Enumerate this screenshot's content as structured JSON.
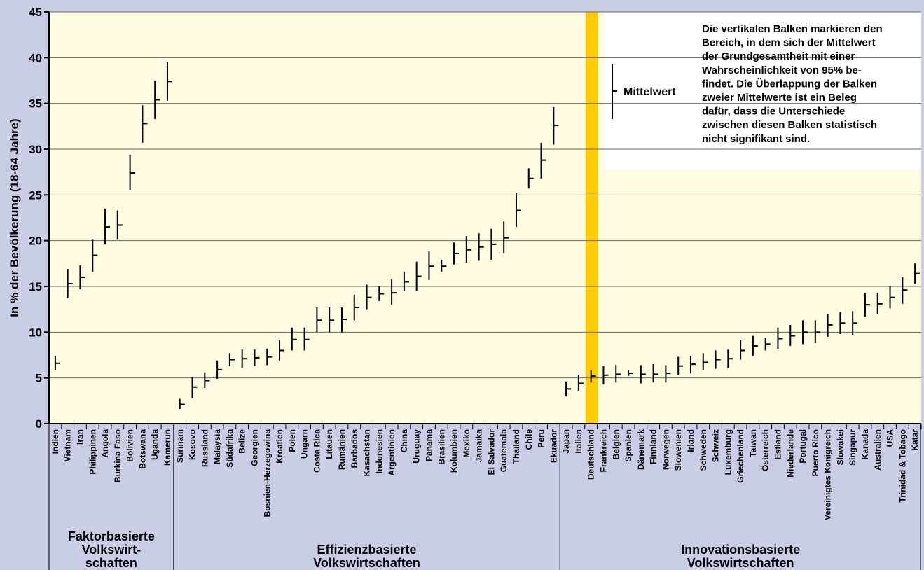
{
  "chart_data": {
    "type": "errorbar",
    "y_label": "In % der Bevölkerung (18-64 Jahre)",
    "ylim": [
      0,
      45
    ],
    "yticks": [
      0,
      5,
      10,
      15,
      20,
      25,
      30,
      35,
      40,
      45
    ],
    "grid": true,
    "color": "#000000",
    "highlight_category": "Deutschland",
    "highlight_color": "#ffcc00",
    "highlight_label_color": "#e0201b",
    "legend_label": "Mittelwert",
    "annotation": [
      "Die vertikalen Balken markieren den",
      "Bereich, in dem sich der Mittelwert",
      "der Grundgesamtheit mit einer",
      "Wahrscheinlichkeit von 95% be-",
      "findet. Die Überlappung der Balken",
      "zweier Mittelwerte ist ein Beleg",
      "dafür, dass die Unterschiede",
      "zwischen diesen Balken statistisch",
      "nicht signifikant sind."
    ],
    "groups": [
      {
        "label": [
          "Faktorbasierte",
          "Volkswirt-",
          "schaften"
        ],
        "categories": [
          "Indien",
          "Vietnam",
          "Iran",
          "Philippinen",
          "Angola",
          "Burkina Faso",
          "Bolivien",
          "Botswana",
          "Uganda",
          "Kamerun"
        ],
        "values": [
          6.6,
          15.3,
          16.0,
          18.4,
          21.5,
          21.7,
          27.4,
          32.8,
          35.4,
          37.4
        ],
        "lower": [
          5.9,
          13.7,
          14.7,
          16.6,
          19.6,
          20.1,
          25.5,
          30.7,
          33.3,
          35.3
        ],
        "upper": [
          7.4,
          16.9,
          17.3,
          20.1,
          23.5,
          23.3,
          29.4,
          34.8,
          37.5,
          39.5
        ]
      },
      {
        "label": [
          "Effizienzbasierte",
          "Volkswirtschaften"
        ],
        "categories": [
          "Surinam",
          "Kosovo",
          "Russland",
          "Malaysia",
          "Südafrika",
          "Belize",
          "Georgien",
          "Bosnien-Herzegowina",
          "Kroatien",
          "Polen",
          "Ungarn",
          "Costa Rica",
          "Litauen",
          "Rumänien",
          "Barbados",
          "Kasachstan",
          "Indonesien",
          "Argentinien",
          "China",
          "Uruguay",
          "Panama",
          "Brasilien",
          "Kolumbien",
          "Mexiko",
          "Jamaika",
          "El Salvador",
          "Guatemala",
          "Thailand",
          "Chile",
          "Peru",
          "Ekuador"
        ],
        "values": [
          2.1,
          4.0,
          4.7,
          5.9,
          7.0,
          7.1,
          7.2,
          7.3,
          8.0,
          9.2,
          9.2,
          11.3,
          11.3,
          11.4,
          12.7,
          13.8,
          14.2,
          14.3,
          15.5,
          16.1,
          17.2,
          17.2,
          18.6,
          19.0,
          19.3,
          19.6,
          20.3,
          23.3,
          26.8,
          28.8,
          32.6
        ],
        "lower": [
          1.6,
          2.8,
          3.9,
          4.9,
          6.3,
          6.1,
          6.3,
          6.4,
          6.9,
          8.0,
          8.0,
          10.0,
          10.0,
          10.0,
          11.3,
          12.5,
          13.4,
          13.0,
          14.5,
          14.5,
          15.7,
          16.6,
          17.4,
          17.6,
          17.8,
          17.9,
          18.6,
          21.5,
          25.7,
          26.8,
          30.5
        ],
        "upper": [
          2.7,
          5.1,
          5.6,
          6.9,
          7.7,
          8.1,
          8.1,
          8.2,
          9.1,
          10.5,
          10.5,
          12.7,
          12.7,
          12.7,
          14.1,
          15.2,
          15.0,
          15.8,
          16.6,
          17.7,
          18.8,
          17.9,
          19.8,
          20.5,
          20.8,
          21.3,
          22.1,
          25.2,
          27.9,
          30.7,
          34.6
        ]
      },
      {
        "label": [
          "Innovationsbasierte",
          "Volkswirtschaften"
        ],
        "categories": [
          "Japan",
          "Italien",
          "Deutschland",
          "Frankreich",
          "Belgien",
          "Spanien",
          "Dänemark",
          "Finnland",
          "Norwegen",
          "Slowenien",
          "Irland",
          "Schweden",
          "Schweiz",
          "Luxemburg",
          "Griechenland",
          "Taiwan",
          "Österreich",
          "Estland",
          "Niederlande",
          "Portugal",
          "Puerto Rico",
          "Vereinigtes Königreich",
          "Slowakei",
          "Singapur",
          "Kanada",
          "Australien",
          "USA",
          "Trinidad & Tobago",
          "Katar"
        ],
        "values": [
          3.8,
          4.4,
          5.2,
          5.3,
          5.4,
          5.5,
          5.4,
          5.4,
          5.5,
          6.3,
          6.5,
          6.7,
          7.0,
          7.1,
          8.0,
          8.5,
          8.7,
          9.3,
          9.6,
          10.0,
          10.0,
          10.8,
          11.0,
          11.0,
          13.0,
          13.1,
          13.8,
          14.6,
          16.4
        ],
        "lower": [
          3.0,
          3.6,
          4.5,
          4.3,
          4.5,
          5.2,
          4.4,
          4.5,
          4.5,
          5.3,
          5.5,
          5.9,
          6.0,
          6.1,
          7.0,
          7.4,
          8.0,
          8.2,
          8.5,
          8.7,
          8.8,
          9.5,
          9.8,
          9.7,
          11.7,
          12.0,
          12.6,
          13.1,
          15.3
        ],
        "upper": [
          4.6,
          5.3,
          5.9,
          6.3,
          6.4,
          5.8,
          6.4,
          6.5,
          6.4,
          7.3,
          7.4,
          7.7,
          8.0,
          8.1,
          9.1,
          9.6,
          9.4,
          10.5,
          10.8,
          11.3,
          11.3,
          12.0,
          12.2,
          12.3,
          14.3,
          14.3,
          15.0,
          16.0,
          17.5
        ]
      }
    ]
  }
}
